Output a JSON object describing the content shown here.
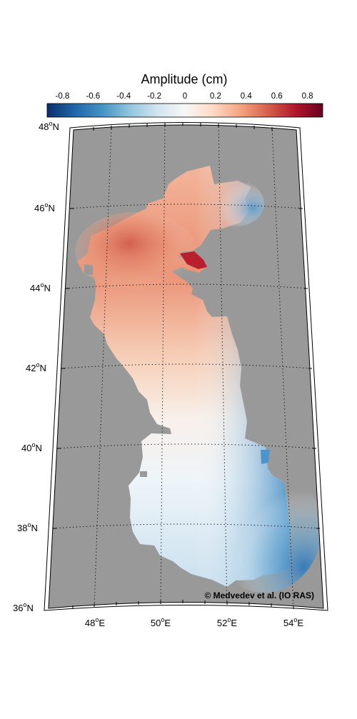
{
  "colorbar": {
    "title": "Amplitude (cm)",
    "ticks": [
      "-0.8",
      "-0.6",
      "-0.4",
      "-0.2",
      "0",
      "0.2",
      "0.4",
      "0.6",
      "0.8"
    ],
    "stops": [
      "#08306b",
      "#2166ac",
      "#4393c3",
      "#92c5de",
      "#d1e5f0",
      "#f7f7f7",
      "#fddbc7",
      "#f4a582",
      "#d6604d",
      "#b2182b",
      "#67001f"
    ]
  },
  "map": {
    "lat_labels": [
      {
        "deg": "48",
        "hemi": "N"
      },
      {
        "deg": "46",
        "hemi": "N"
      },
      {
        "deg": "44",
        "hemi": "N"
      },
      {
        "deg": "42",
        "hemi": "N"
      },
      {
        "deg": "40",
        "hemi": "N"
      },
      {
        "deg": "38",
        "hemi": "N"
      },
      {
        "deg": "36",
        "hemi": "N"
      }
    ],
    "lon_labels": [
      {
        "deg": "48",
        "hemi": "E"
      },
      {
        "deg": "50",
        "hemi": "E"
      },
      {
        "deg": "52",
        "hemi": "E"
      },
      {
        "deg": "54",
        "hemi": "E"
      }
    ],
    "land_color": "#999999",
    "credit": "© Medvedev et al. (IO RAS)"
  }
}
